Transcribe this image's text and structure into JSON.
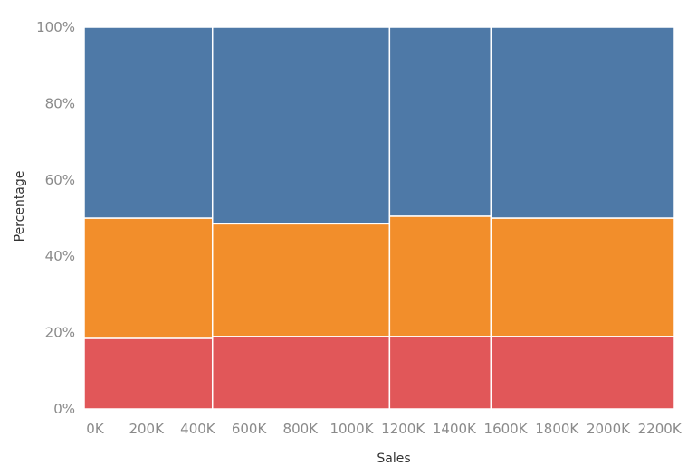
{
  "chart_data": {
    "type": "bar",
    "subtype": "marimekko",
    "title": "",
    "xlabel": "Sales",
    "ylabel": "Percentage",
    "xlim": [
      0,
      2300000
    ],
    "ylim": [
      0,
      100
    ],
    "grid": false,
    "x_ticks": [
      {
        "value": 0,
        "label": "0K"
      },
      {
        "value": 200000,
        "label": "200K"
      },
      {
        "value": 400000,
        "label": "400K"
      },
      {
        "value": 600000,
        "label": "600K"
      },
      {
        "value": 800000,
        "label": "800K"
      },
      {
        "value": 1000000,
        "label": "1000K"
      },
      {
        "value": 1200000,
        "label": "1200K"
      },
      {
        "value": 1400000,
        "label": "1400K"
      },
      {
        "value": 1600000,
        "label": "1600K"
      },
      {
        "value": 1800000,
        "label": "1800K"
      },
      {
        "value": 2000000,
        "label": "2000K"
      },
      {
        "value": 2200000,
        "label": "2200K"
      }
    ],
    "y_ticks": [
      {
        "value": 0,
        "label": "0%"
      },
      {
        "value": 20,
        "label": "20%"
      },
      {
        "value": 40,
        "label": "40%"
      },
      {
        "value": 60,
        "label": "60%"
      },
      {
        "value": 80,
        "label": "80%"
      },
      {
        "value": 100,
        "label": "100%"
      }
    ],
    "columns": [
      {
        "x_start": 0,
        "x_end": 500000
      },
      {
        "x_start": 500000,
        "x_end": 1190000
      },
      {
        "x_start": 1190000,
        "x_end": 1585000
      },
      {
        "x_start": 1585000,
        "x_end": 2300000
      }
    ],
    "series": [
      {
        "color": "#e15759",
        "values": [
          18.5,
          19,
          19,
          19
        ]
      },
      {
        "color": "#f28e2b",
        "values": [
          31.5,
          29.5,
          31.5,
          31
        ]
      },
      {
        "color": "#4e79a7",
        "values": [
          50,
          51.5,
          49.5,
          50
        ]
      }
    ]
  }
}
